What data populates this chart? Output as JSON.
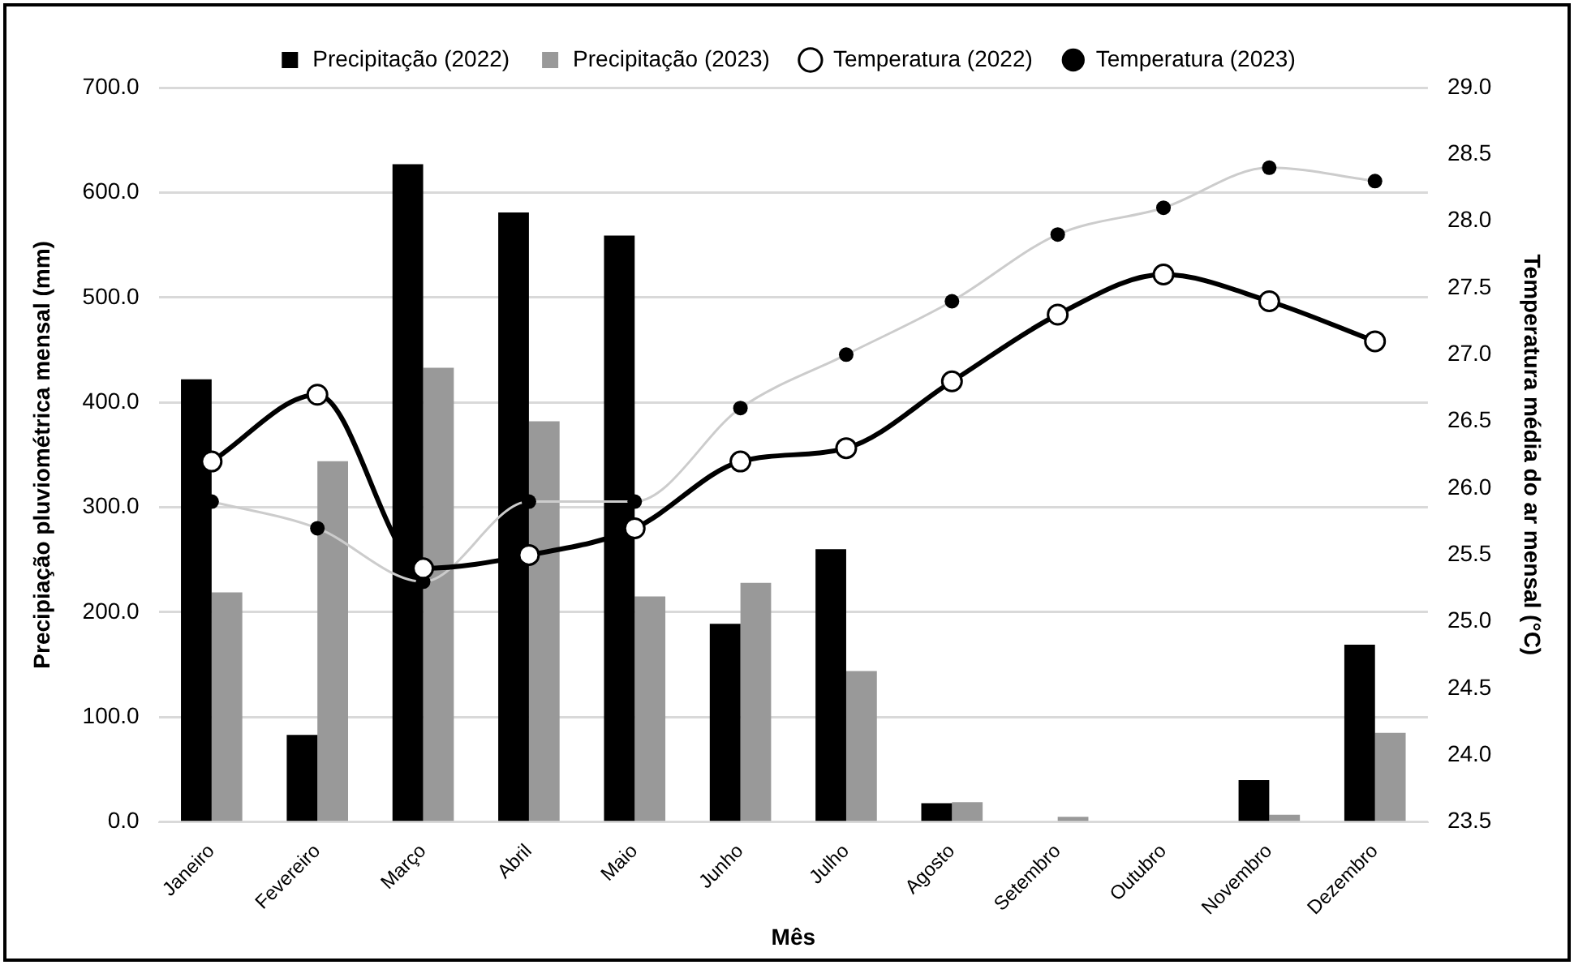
{
  "chart_data": {
    "type": "bar",
    "xlabel": "Mês",
    "ylabel": "Precipiação pluviométrica mensal (mm)",
    "y2label": "Temperatura média do ar mensal (°C)",
    "categories": [
      "Janeiro",
      "Fevereiro",
      "Março",
      "Abril",
      "Maio",
      "Junho",
      "Julho",
      "Agosto",
      "Setembro",
      "Outubro",
      "Novembro",
      "Dezembro"
    ],
    "series": [
      {
        "name": "Precipitação (2022)",
        "color": "#000000",
        "values": [
          422,
          83,
          627,
          581,
          559,
          189,
          260,
          18,
          0,
          0,
          40,
          169
        ]
      },
      {
        "name": "Precipitação (2023)",
        "color": "#999999",
        "values": [
          219,
          344,
          433,
          382,
          215,
          228,
          144,
          19,
          5,
          0,
          7,
          85
        ]
      },
      {
        "name": "Temperatura (2022)",
        "type": "line",
        "axis": "y2",
        "color": "#000000",
        "marker": "circle",
        "values": [
          26.2,
          26.7,
          25.4,
          25.5,
          25.7,
          26.2,
          26.3,
          26.8,
          27.3,
          27.6,
          27.4,
          27.1
        ]
      },
      {
        "name": "Temperatura (2023)",
        "type": "line",
        "axis": "y2",
        "color": "#cccccc",
        "marker": "circle",
        "values": [
          25.9,
          25.7,
          25.3,
          25.9,
          25.9,
          26.6,
          27.0,
          27.4,
          27.9,
          28.1,
          28.4,
          28.3
        ]
      }
    ],
    "ylim": [
      0,
      700
    ],
    "yticks": [
      {
        "value": 0,
        "label": "0.0"
      },
      {
        "value": 100,
        "label": "100.0"
      },
      {
        "value": 200,
        "label": "200.0"
      },
      {
        "value": 300,
        "label": "300.0"
      },
      {
        "value": 400,
        "label": "400.0"
      },
      {
        "value": 500,
        "label": "500.0"
      },
      {
        "value": 600,
        "label": "600.0"
      },
      {
        "value": 700,
        "label": "700.0"
      }
    ],
    "y2lim": [
      23.5,
      29
    ],
    "y2ticks": [
      {
        "value": 23.5,
        "label": "23.5"
      },
      {
        "value": 24,
        "label": "24.0"
      },
      {
        "value": 24.5,
        "label": "24.5"
      },
      {
        "value": 25,
        "label": "25.0"
      },
      {
        "value": 25.5,
        "label": "25.5"
      },
      {
        "value": 26,
        "label": "26.0"
      },
      {
        "value": 26.5,
        "label": "26.5"
      },
      {
        "value": 27,
        "label": "27.0"
      },
      {
        "value": 27.5,
        "label": "27.5"
      },
      {
        "value": 28,
        "label": "28.0"
      },
      {
        "value": 28.5,
        "label": "28.5"
      },
      {
        "value": 29,
        "label": "29.0"
      }
    ],
    "grid": "y",
    "legend": "top"
  }
}
